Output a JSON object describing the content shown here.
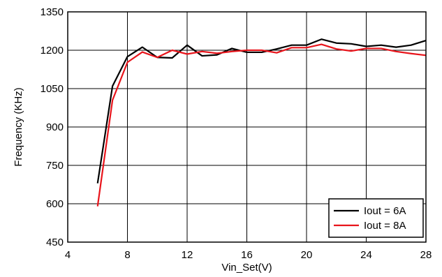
{
  "chart_data": {
    "type": "line",
    "title": "",
    "xlabel": "Vin_Set(V)",
    "ylabel": "Frequency (KHz)",
    "xlim": [
      4,
      28
    ],
    "ylim": [
      450,
      1350
    ],
    "x_ticks": [
      4,
      8,
      12,
      16,
      20,
      24,
      28
    ],
    "y_ticks": [
      450,
      600,
      750,
      900,
      1050,
      1200,
      1350
    ],
    "grid": true,
    "legend_position": "bottom-right",
    "x": [
      6,
      7,
      8,
      9,
      10,
      11,
      12,
      13,
      14,
      15,
      16,
      17,
      18,
      19,
      20,
      21,
      22,
      23,
      24,
      25,
      26,
      27,
      28
    ],
    "series": [
      {
        "name": "Iout = 6A",
        "color": "#000000",
        "values": [
          680,
          1060,
          1175,
          1212,
          1172,
          1170,
          1220,
          1178,
          1182,
          1207,
          1192,
          1192,
          1205,
          1220,
          1220,
          1243,
          1228,
          1225,
          1215,
          1220,
          1212,
          1220,
          1238
        ]
      },
      {
        "name": "Iout = 8A",
        "color": "#e8141b",
        "values": [
          590,
          1005,
          1153,
          1193,
          1172,
          1200,
          1185,
          1195,
          1188,
          1195,
          1200,
          1200,
          1190,
          1210,
          1210,
          1223,
          1205,
          1197,
          1207,
          1207,
          1195,
          1187,
          1180
        ]
      }
    ]
  }
}
